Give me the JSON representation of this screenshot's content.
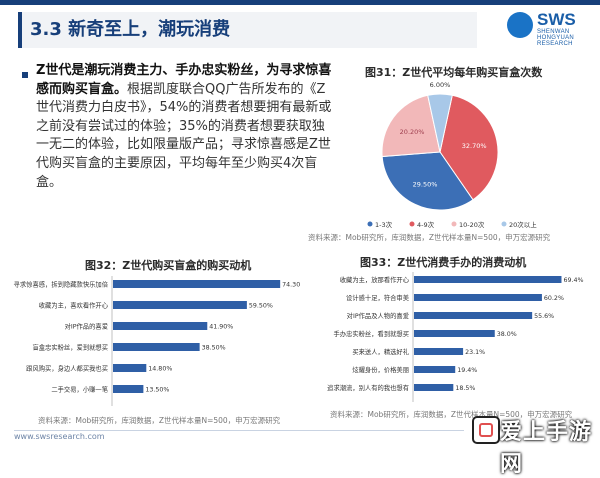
{
  "header": {
    "title": "3.3 新奇至上，潮玩消费",
    "logo_text": "SWS",
    "logo_sub": "SHENWAN HONGYUAN RESEARCH"
  },
  "paragraph": {
    "bold": "Z世代是潮玩消费主力、手办忠实粉丝，为寻求惊喜感而购买盲盒。",
    "normal": "根据凯度联合QQ广告所发布的《Z 世代消费力白皮书》，54%的消费者想要拥有最新或之前没有尝试过的体验；35%的消费者想要获取独一无二的体验，比如限量版产品；寻求惊喜感是Z世代购买盲盒的主要原因，平均每年至少购买4次盲盒。"
  },
  "colors": {
    "brand": "#173f7a",
    "bar": "#2f5fa6",
    "pie": [
      "#3c6fb6",
      "#e05a5f",
      "#f2b8b9",
      "#a8c8e8"
    ]
  },
  "chart_data": [
    {
      "type": "pie",
      "title": "图31：Z世代平均每年购买盲盒次数",
      "categories": [
        "1-3次",
        "4-9次",
        "10-20次",
        "20次以上"
      ],
      "values": [
        29.5,
        32.7,
        20.2,
        6.0
      ],
      "value_labels": [
        "29.50%",
        "32.70%",
        "20.20%",
        "6.00%"
      ],
      "legend": "bottom",
      "source": "资料来源：Mob研究所，库润数据，Z世代样本量N=500，申万宏源研究"
    },
    {
      "type": "bar",
      "orientation": "horizontal",
      "title": "图32：Z世代购买盲盒的购买动机",
      "categories": [
        "寻求惊喜感，拆到隐藏款快乐加倍",
        "收藏为主，喜欢看作开心",
        "对IP作品的喜爱",
        "盲盒忠实粉丝，爱到就想买",
        "跟风购买，身边人都买我也买",
        "二手交易，小赚一笔"
      ],
      "values": [
        74.3,
        59.5,
        41.9,
        38.5,
        14.8,
        13.5
      ],
      "value_labels": [
        "74.30%",
        "59.50%",
        "41.90%",
        "38.50%",
        "14.80%",
        "13.50%"
      ],
      "source": "资料来源：Mob研究所，库润数据，Z世代样本量N=500，申万宏源研究"
    },
    {
      "type": "bar",
      "orientation": "horizontal",
      "title": "图33：Z世代消费手办的消费动机",
      "categories": [
        "收藏为主，放那看作开心",
        "设计感十足，符合审美",
        "对IP作品及人物的喜爱",
        "手办忠实粉丝，看到就想买",
        "买来送人，精选好礼",
        "炫耀身份，价格美丽",
        "追求潮流，别人有的我也想有"
      ],
      "values": [
        69.4,
        60.2,
        55.6,
        38.0,
        23.1,
        19.4,
        18.5
      ],
      "value_labels": [
        "69.4%",
        "60.2%",
        "55.6%",
        "38.0%",
        "23.1%",
        "19.4%",
        "18.5%"
      ],
      "source": "资料来源：Mob研究所，库润数据，Z世代样本量N=500，申万宏源研究"
    }
  ],
  "footer": {
    "url": "www.swsresearch.com",
    "watermark": "爱上手游网"
  }
}
